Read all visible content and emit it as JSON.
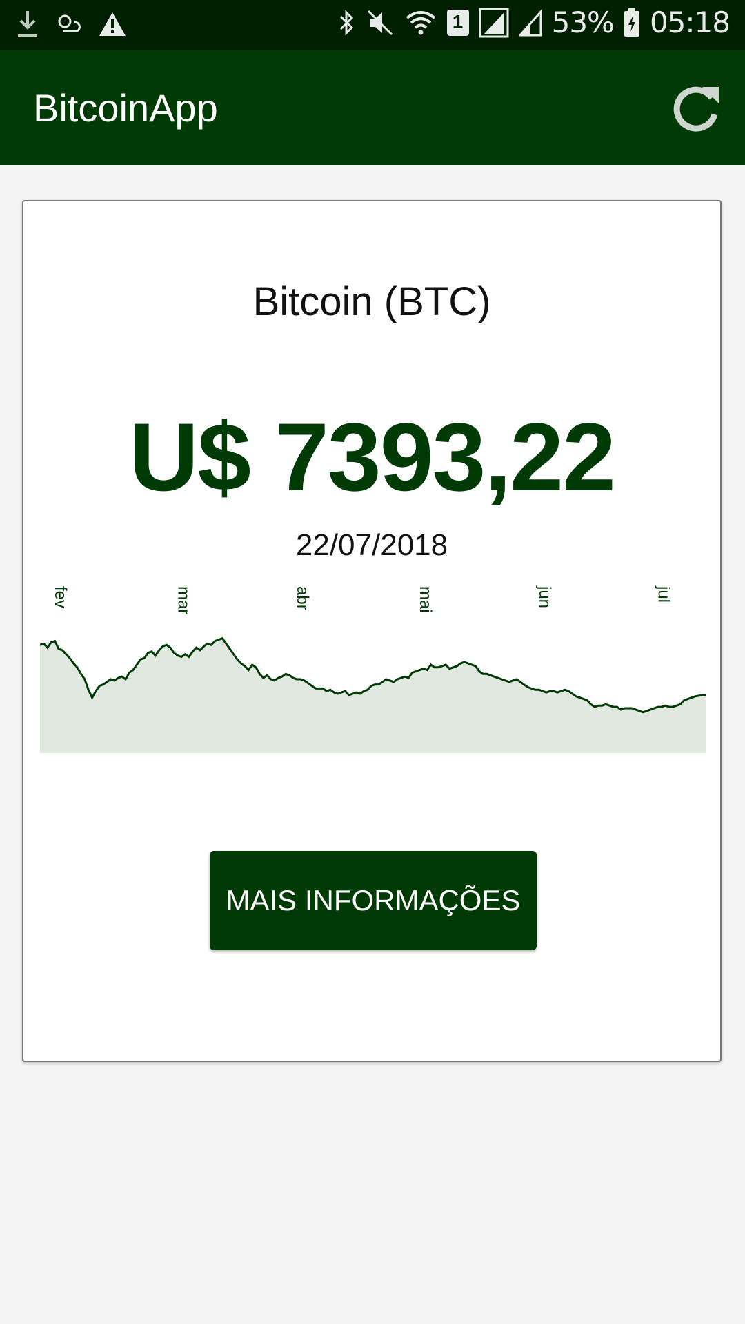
{
  "status_bar": {
    "battery": "53%",
    "time": "05:18",
    "sim_badge": "1",
    "icons_left": [
      "download-icon",
      "weather-icon",
      "warning-icon"
    ],
    "icons_right": [
      "bluetooth-icon",
      "mute-icon",
      "wifi-icon",
      "sim-icon",
      "signal-icon",
      "signal-icon-2",
      "battery-icon"
    ]
  },
  "app_bar": {
    "title": "BitcoinApp",
    "action_icon": "refresh-icon"
  },
  "card": {
    "coin_name": "Bitcoin (BTC)",
    "price": "U$ 7393,22",
    "date": "22/07/2018",
    "button_label": "MAIS INFORMAÇÕES"
  },
  "colors": {
    "primary": "#003a05",
    "status_bar": "#001f00",
    "chart_fill": "#e0e8e0",
    "background": "#f4f4f4"
  },
  "chart_data": {
    "type": "area",
    "title": "",
    "month_labels": [
      "fev",
      "mar",
      "abr",
      "mai",
      "jun",
      "jul"
    ],
    "month_start_index": [
      3,
      36,
      68,
      101,
      133,
      165
    ],
    "values": [
      11200,
      11300,
      11000,
      11400,
      11500,
      10900,
      10800,
      10500,
      10200,
      9800,
      9500,
      9000,
      8600,
      7800,
      7200,
      7700,
      8100,
      8200,
      8400,
      8600,
      8500,
      8700,
      8800,
      8600,
      9100,
      9300,
      9700,
      10100,
      10200,
      10600,
      10700,
      10400,
      10800,
      11100,
      11200,
      11000,
      10600,
      10400,
      10300,
      10500,
      10300,
      10700,
      11000,
      10800,
      11100,
      11300,
      11200,
      11500,
      11600,
      11700,
      11300,
      10900,
      10500,
      10100,
      9800,
      9600,
      9300,
      9700,
      9500,
      9000,
      8700,
      8900,
      8600,
      8500,
      8700,
      8800,
      9000,
      8900,
      8700,
      8600,
      8600,
      8500,
      8300,
      8100,
      7900,
      7900,
      7900,
      7700,
      7800,
      7600,
      7500,
      7600,
      7700,
      7400,
      7500,
      7600,
      7500,
      7700,
      7800,
      8100,
      8200,
      8200,
      8400,
      8600,
      8500,
      8400,
      8600,
      8700,
      8800,
      8700,
      9100,
      9200,
      9300,
      9400,
      9300,
      9700,
      9500,
      9500,
      9600,
      9700,
      9400,
      9500,
      9600,
      9800,
      9900,
      9800,
      9700,
      9600,
      9200,
      9000,
      9000,
      8900,
      8800,
      8700,
      8600,
      8500,
      8400,
      8500,
      8600,
      8400,
      8200,
      8000,
      7900,
      7800,
      7800,
      7700,
      7600,
      7700,
      7700,
      7600,
      7700,
      7800,
      7700,
      7500,
      7300,
      7200,
      7100,
      7000,
      6700,
      6500,
      6600,
      6600,
      6700,
      6600,
      6500,
      6500,
      6300,
      6400,
      6400,
      6400,
      6300,
      6200,
      6100,
      6200,
      6300,
      6400,
      6500,
      6500,
      6600,
      6500,
      6500,
      6600,
      6700,
      7000,
      7100,
      7200,
      7300,
      7350,
      7393,
      7393
    ]
  }
}
